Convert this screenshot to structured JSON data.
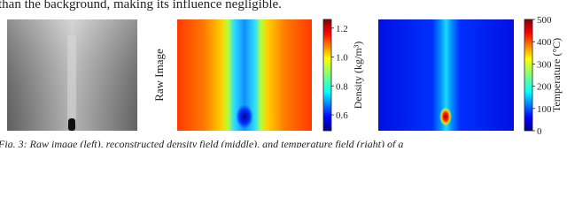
{
  "top_text": "than the background, making its influence negligible.",
  "raw_label": "Raw Image",
  "colorbars": [
    {
      "label": "Density (kg/m³)",
      "lim": [
        0.49,
        1.26
      ],
      "ticks": [
        0.6,
        0.8,
        {
          "value": 1,
          "label": "1.0"
        },
        1.2
      ]
    },
    {
      "label": "Temperature (°C)",
      "lim": [
        0,
        500
      ],
      "ticks": [
        0,
        100,
        200,
        300,
        400,
        500
      ]
    }
  ],
  "caption": "Fig. 3: Raw image (left), reconstructed density field (middle), and temperature field (right) of a"
}
